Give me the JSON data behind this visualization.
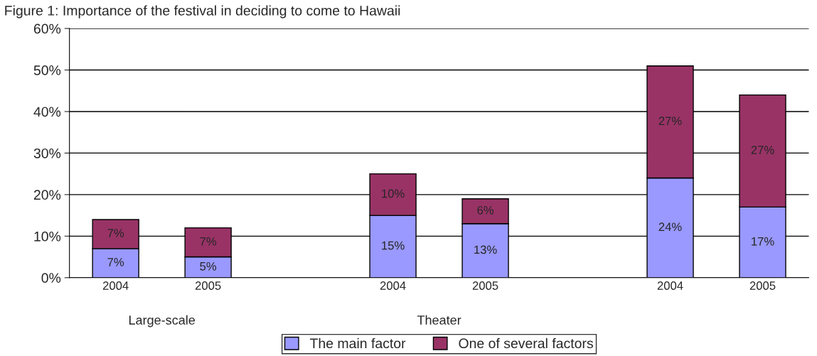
{
  "chart_data": {
    "type": "bar",
    "title": "Figure 1: Importance of the festival in deciding to come to Hawaii",
    "categories": [
      "2004",
      "2005",
      null,
      "2004",
      "2005",
      null,
      "2004",
      "2005"
    ],
    "series": [
      {
        "name": "The main factor",
        "color": "#9999ff",
        "values": [
          7,
          5,
          null,
          15,
          13,
          null,
          24,
          17
        ],
        "value_labels": [
          "7%",
          "5%",
          null,
          "15%",
          "13%",
          null,
          "24%",
          "17%"
        ]
      },
      {
        "name": "One of several factors",
        "color": "#993366",
        "values": [
          7,
          7,
          null,
          10,
          6,
          null,
          27,
          27
        ],
        "value_labels": [
          "7%",
          "7%",
          null,
          "10%",
          "6%",
          null,
          "27%",
          "27%"
        ]
      }
    ],
    "stacked": true,
    "ylim": [
      0,
      60
    ],
    "yticks": [
      {
        "value": 0,
        "label": "0%"
      },
      {
        "value": 10,
        "label": "10%"
      },
      {
        "value": 20,
        "label": "20%"
      },
      {
        "value": 30,
        "label": "30%"
      },
      {
        "value": 40,
        "label": "40%"
      },
      {
        "value": 50,
        "label": "50%"
      },
      {
        "value": 60,
        "label": "60%"
      }
    ],
    "annotations": [
      {
        "text": "Large-scale"
      },
      {
        "text": "Theater"
      }
    ],
    "grid": "y",
    "legend": "bottom"
  }
}
